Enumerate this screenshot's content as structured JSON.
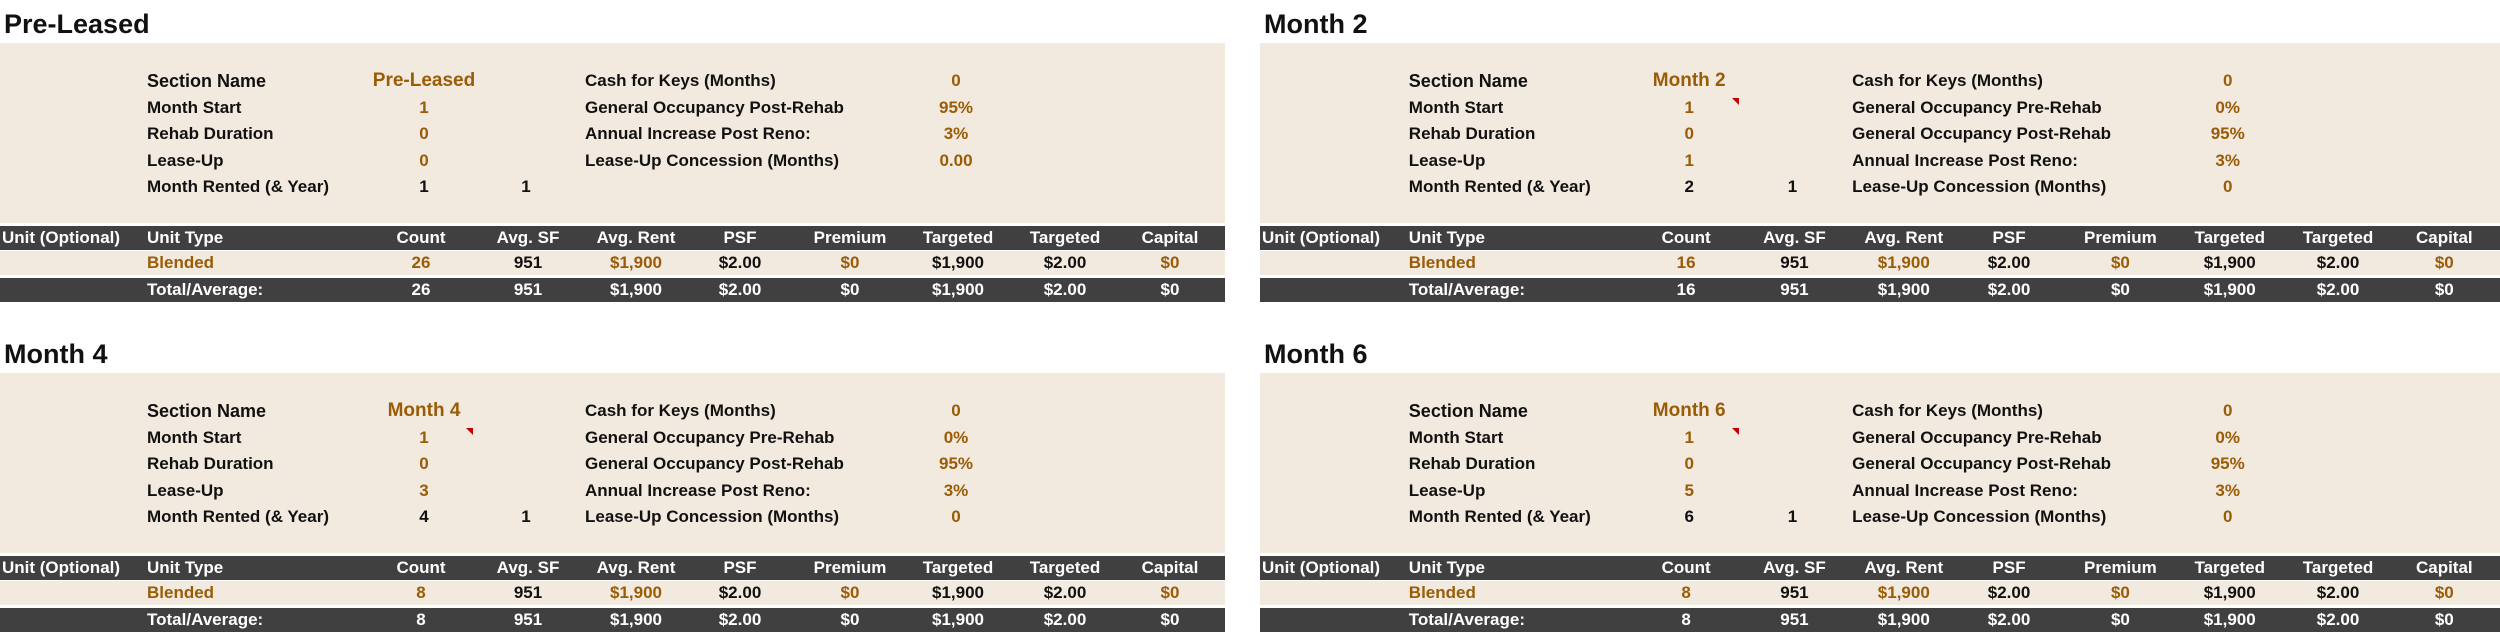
{
  "panels": [
    {
      "title": "Pre-Leased",
      "settings": {
        "left": [
          {
            "label": "Section Name",
            "values": [
              "Pre-Leased"
            ]
          },
          {
            "label": "Month Start",
            "values": [
              "1"
            ]
          },
          {
            "label": "Rehab Duration",
            "values": [
              "0"
            ]
          },
          {
            "label": "Lease-Up",
            "values": [
              "0"
            ]
          },
          {
            "label": "Month Rented (& Year)",
            "values": [
              "1",
              "1"
            ]
          }
        ],
        "right": [
          {
            "label": "Cash for Keys (Months)",
            "value": "0"
          },
          {
            "label": "General Occupancy Post-Rehab",
            "value": "95%"
          },
          {
            "label": "Annual Increase Post Reno:",
            "value": "3%"
          },
          {
            "label": "Lease-Up Concession (Months)",
            "value": "0.00"
          }
        ]
      },
      "table": {
        "header": [
          "Unit (Optional)",
          "Unit Type",
          "Count",
          "Avg. SF",
          "Avg. Rent",
          "PSF",
          "Premium",
          "Targeted",
          "Targeted",
          "Capital"
        ],
        "row": [
          "Blended",
          "26",
          "951",
          "$1,900",
          "$2.00",
          "$0",
          "$1,900",
          "$2.00",
          "$0"
        ],
        "total": [
          "Total/Average:",
          "26",
          "951",
          "$1,900",
          "$2.00",
          "$0",
          "$1,900",
          "$2.00",
          "$0"
        ]
      }
    },
    {
      "title": "Month 2",
      "settings": {
        "left": [
          {
            "label": "Section Name",
            "values": [
              "Month 2"
            ]
          },
          {
            "label": "Month Start",
            "values": [
              "1"
            ]
          },
          {
            "label": "Rehab Duration",
            "values": [
              "0"
            ]
          },
          {
            "label": "Lease-Up",
            "values": [
              "1"
            ]
          },
          {
            "label": "Month Rented (& Year)",
            "values": [
              "2",
              "1"
            ]
          }
        ],
        "right": [
          {
            "label": "Cash for Keys (Months)",
            "value": "0"
          },
          {
            "label": "General Occupancy Pre-Rehab",
            "value": "0%"
          },
          {
            "label": "General Occupancy Post-Rehab",
            "value": "95%"
          },
          {
            "label": "Annual Increase Post Reno:",
            "value": "3%"
          },
          {
            "label": "Lease-Up Concession (Months)",
            "value": "0"
          }
        ]
      },
      "table": {
        "header": [
          "Unit (Optional)",
          "Unit Type",
          "Count",
          "Avg. SF",
          "Avg. Rent",
          "PSF",
          "Premium",
          "Targeted",
          "Targeted",
          "Capital"
        ],
        "row": [
          "Blended",
          "16",
          "951",
          "$1,900",
          "$2.00",
          "$0",
          "$1,900",
          "$2.00",
          "$0"
        ],
        "total": [
          "Total/Average:",
          "16",
          "951",
          "$1,900",
          "$2.00",
          "$0",
          "$1,900",
          "$2.00",
          "$0"
        ]
      }
    },
    {
      "title": "Month 4",
      "settings": {
        "left": [
          {
            "label": "Section Name",
            "values": [
              "Month 4"
            ]
          },
          {
            "label": "Month Start",
            "values": [
              "1"
            ]
          },
          {
            "label": "Rehab Duration",
            "values": [
              "0"
            ]
          },
          {
            "label": "Lease-Up",
            "values": [
              "3"
            ]
          },
          {
            "label": "Month Rented (& Year)",
            "values": [
              "4",
              "1"
            ]
          }
        ],
        "right": [
          {
            "label": "Cash for Keys (Months)",
            "value": "0"
          },
          {
            "label": "General Occupancy Pre-Rehab",
            "value": "0%"
          },
          {
            "label": "General Occupancy Post-Rehab",
            "value": "95%"
          },
          {
            "label": "Annual Increase Post Reno:",
            "value": "3%"
          },
          {
            "label": "Lease-Up Concession (Months)",
            "value": "0"
          }
        ]
      },
      "table": {
        "header": [
          "Unit (Optional)",
          "Unit Type",
          "Count",
          "Avg. SF",
          "Avg. Rent",
          "PSF",
          "Premium",
          "Targeted",
          "Targeted",
          "Capital"
        ],
        "row": [
          "Blended",
          "8",
          "951",
          "$1,900",
          "$2.00",
          "$0",
          "$1,900",
          "$2.00",
          "$0"
        ],
        "total": [
          "Total/Average:",
          "8",
          "951",
          "$1,900",
          "$2.00",
          "$0",
          "$1,900",
          "$2.00",
          "$0"
        ]
      }
    },
    {
      "title": "Month 6",
      "settings": {
        "left": [
          {
            "label": "Section Name",
            "values": [
              "Month 6"
            ]
          },
          {
            "label": "Month Start",
            "values": [
              "1"
            ]
          },
          {
            "label": "Rehab Duration",
            "values": [
              "0"
            ]
          },
          {
            "label": "Lease-Up",
            "values": [
              "5"
            ]
          },
          {
            "label": "Month Rented (& Year)",
            "values": [
              "6",
              "1"
            ]
          }
        ],
        "right": [
          {
            "label": "Cash for Keys (Months)",
            "value": "0"
          },
          {
            "label": "General Occupancy Pre-Rehab",
            "value": "0%"
          },
          {
            "label": "General Occupancy Post-Rehab",
            "value": "95%"
          },
          {
            "label": "Annual Increase Post Reno:",
            "value": "3%"
          },
          {
            "label": "Lease-Up Concession (Months)",
            "value": "0"
          }
        ]
      },
      "table": {
        "header": [
          "Unit (Optional)",
          "Unit Type",
          "Count",
          "Avg. SF",
          "Avg. Rent",
          "PSF",
          "Premium",
          "Targeted",
          "Targeted",
          "Capital"
        ],
        "row": [
          "Blended",
          "8",
          "951",
          "$1,900",
          "$2.00",
          "$0",
          "$1,900",
          "$2.00",
          "$0"
        ],
        "total": [
          "Total/Average:",
          "8",
          "951",
          "$1,900",
          "$2.00",
          "$0",
          "$1,900",
          "$2.00",
          "$0"
        ]
      }
    }
  ]
}
